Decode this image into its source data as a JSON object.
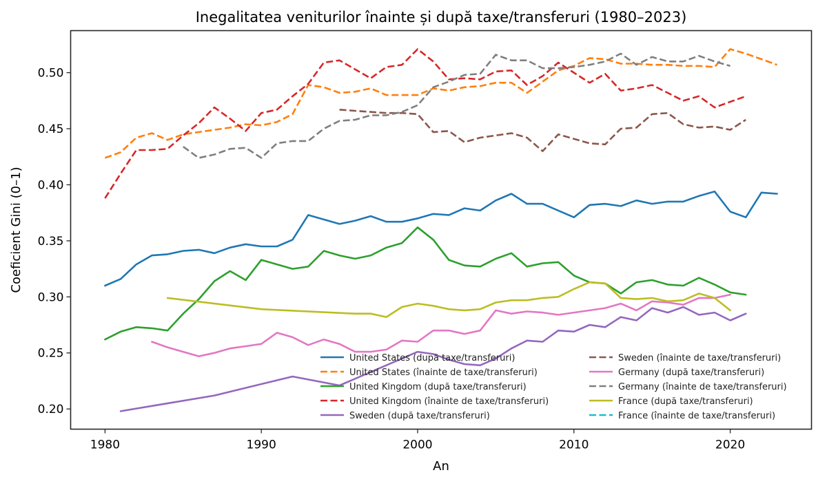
{
  "chart_data": {
    "type": "line",
    "title": "Inegalitatea veniturilor înainte și după taxe/transferuri (1980–2023)",
    "xlabel": "An",
    "ylabel": "Coeficient Gini (0–1)",
    "xlim": [
      1977.8,
      2025.2
    ],
    "ylim": [
      0.182,
      0.5375
    ],
    "xticks": [
      1980,
      1990,
      2000,
      2010,
      2020
    ],
    "xtick_labels": [
      "1980",
      "1990",
      "2000",
      "2010",
      "2020"
    ],
    "yticks": [
      0.2,
      0.25,
      0.3,
      0.35,
      0.4,
      0.45,
      0.5
    ],
    "ytick_labels": [
      "0.20",
      "0.25",
      "0.30",
      "0.35",
      "0.40",
      "0.45",
      "0.50"
    ],
    "grid": false,
    "legend_placement": "lower-right",
    "legend_columns": 2,
    "series": [
      {
        "name": "United States (după taxe/transferuri)",
        "color": "#1f77b4",
        "style": "solid",
        "x": [
          1980,
          1981,
          1982,
          1983,
          1984,
          1985,
          1986,
          1987,
          1988,
          1989,
          1990,
          1991,
          1992,
          1993,
          1994,
          1995,
          1996,
          1997,
          1998,
          1999,
          2000,
          2001,
          2002,
          2003,
          2004,
          2005,
          2006,
          2007,
          2008,
          2009,
          2010,
          2011,
          2012,
          2013,
          2014,
          2015,
          2016,
          2017,
          2018,
          2019,
          2020,
          2021,
          2022,
          2023
        ],
        "y": [
          0.31,
          0.316,
          0.329,
          0.337,
          0.338,
          0.341,
          0.342,
          0.339,
          0.344,
          0.347,
          0.345,
          0.345,
          0.351,
          0.373,
          0.369,
          0.365,
          0.368,
          0.372,
          0.367,
          0.367,
          0.37,
          0.374,
          0.373,
          0.379,
          0.377,
          0.386,
          0.392,
          0.383,
          0.383,
          0.377,
          0.371,
          0.382,
          0.383,
          0.381,
          0.386,
          0.383,
          0.385,
          0.385,
          0.39,
          0.394,
          0.376,
          0.371,
          0.393,
          0.392
        ]
      },
      {
        "name": "United States (înainte de taxe/transferuri)",
        "color": "#ff7f0e",
        "style": "dashed",
        "x": [
          1980,
          1981,
          1982,
          1983,
          1984,
          1985,
          1986,
          1987,
          1988,
          1989,
          1990,
          1991,
          1992,
          1993,
          1994,
          1995,
          1996,
          1997,
          1998,
          1999,
          2000,
          2001,
          2002,
          2003,
          2004,
          2005,
          2006,
          2007,
          2008,
          2009,
          2010,
          2011,
          2012,
          2013,
          2014,
          2015,
          2016,
          2017,
          2018,
          2019,
          2020,
          2021,
          2022,
          2023
        ],
        "y": [
          0.424,
          0.429,
          0.442,
          0.446,
          0.44,
          0.445,
          0.447,
          0.449,
          0.451,
          0.454,
          0.453,
          0.456,
          0.463,
          0.489,
          0.487,
          0.482,
          0.483,
          0.486,
          0.48,
          0.48,
          0.48,
          0.486,
          0.484,
          0.487,
          0.488,
          0.491,
          0.491,
          0.482,
          0.492,
          0.502,
          0.506,
          0.513,
          0.512,
          0.508,
          0.508,
          0.507,
          0.507,
          0.506,
          0.506,
          0.505,
          0.521,
          0.517,
          0.512,
          0.507
        ]
      },
      {
        "name": "United Kingdom (după taxe/transferuri)",
        "color": "#2ca02c",
        "style": "solid",
        "x": [
          1980,
          1981,
          1982,
          1983,
          1984,
          1985,
          1986,
          1987,
          1988,
          1989,
          1990,
          1991,
          1992,
          1993,
          1994,
          1995,
          1996,
          1997,
          1998,
          1999,
          2000,
          2001,
          2002,
          2003,
          2004,
          2005,
          2006,
          2007,
          2008,
          2009,
          2010,
          2011,
          2012,
          2013,
          2014,
          2015,
          2016,
          2017,
          2018,
          2019,
          2020,
          2021
        ],
        "y": [
          0.262,
          0.269,
          0.273,
          0.272,
          0.27,
          0.285,
          0.298,
          0.314,
          0.323,
          0.315,
          0.333,
          0.329,
          0.325,
          0.327,
          0.341,
          0.337,
          0.334,
          0.337,
          0.344,
          0.348,
          0.362,
          0.351,
          0.333,
          0.328,
          0.327,
          0.334,
          0.339,
          0.327,
          0.33,
          0.331,
          0.319,
          0.313,
          0.312,
          0.303,
          0.313,
          0.315,
          0.311,
          0.31,
          0.317,
          0.311,
          0.304,
          0.302
        ]
      },
      {
        "name": "United Kingdom (înainte de taxe/transferuri)",
        "color": "#d62728",
        "style": "dashed",
        "x": [
          1980,
          1981,
          1982,
          1983,
          1984,
          1985,
          1986,
          1987,
          1988,
          1989,
          1990,
          1991,
          1992,
          1993,
          1994,
          1995,
          1996,
          1997,
          1998,
          1999,
          2000,
          2001,
          2002,
          2003,
          2004,
          2005,
          2006,
          2007,
          2008,
          2009,
          2010,
          2011,
          2012,
          2013,
          2014,
          2015,
          2016,
          2017,
          2018,
          2019,
          2020,
          2021
        ],
        "y": [
          0.388,
          0.41,
          0.431,
          0.431,
          0.432,
          0.444,
          0.455,
          0.469,
          0.459,
          0.448,
          0.464,
          0.467,
          0.479,
          0.49,
          0.509,
          0.511,
          0.503,
          0.495,
          0.505,
          0.507,
          0.521,
          0.51,
          0.494,
          0.495,
          0.494,
          0.501,
          0.502,
          0.489,
          0.497,
          0.509,
          0.5,
          0.491,
          0.499,
          0.484,
          0.486,
          0.489,
          0.482,
          0.475,
          0.479,
          0.469,
          0.474,
          0.479
        ]
      },
      {
        "name": "Sweden (după taxe/transferuri)",
        "color": "#9467bd",
        "style": "solid",
        "x": [
          1981,
          1987,
          1992,
          1995,
          2000,
          2001,
          2002,
          2003,
          2004,
          2005,
          2006,
          2007,
          2008,
          2009,
          2010,
          2011,
          2012,
          2013,
          2014,
          2015,
          2016,
          2017,
          2018,
          2019,
          2020,
          2021
        ],
        "y": [
          0.198,
          0.212,
          0.229,
          0.221,
          0.251,
          0.249,
          0.244,
          0.24,
          0.239,
          0.245,
          0.254,
          0.261,
          0.26,
          0.27,
          0.269,
          0.275,
          0.273,
          0.282,
          0.279,
          0.29,
          0.286,
          0.291,
          0.284,
          0.286,
          0.279,
          0.285
        ]
      },
      {
        "name": "Sweden (înainte de taxe/transferuri)",
        "color": "#8c564b",
        "style": "dashed",
        "x": [
          1995,
          1996,
          1997,
          1998,
          1999,
          2000,
          2001,
          2002,
          2003,
          2004,
          2005,
          2006,
          2007,
          2008,
          2009,
          2010,
          2011,
          2012,
          2013,
          2014,
          2015,
          2016,
          2017,
          2018,
          2019,
          2020,
          2021
        ],
        "y": [
          0.467,
          0.466,
          0.465,
          0.464,
          0.464,
          0.463,
          0.447,
          0.448,
          0.438,
          0.442,
          0.444,
          0.446,
          0.442,
          0.43,
          0.445,
          0.441,
          0.437,
          0.436,
          0.45,
          0.451,
          0.463,
          0.464,
          0.454,
          0.451,
          0.452,
          0.449,
          0.458
        ]
      },
      {
        "name": "Germany (după taxe/transferuri)",
        "color": "#e377c2",
        "style": "solid",
        "x": [
          1983,
          1984,
          1986,
          1987,
          1988,
          1989,
          1990,
          1991,
          1992,
          1993,
          1994,
          1995,
          1996,
          1997,
          1998,
          1999,
          2000,
          2001,
          2002,
          2003,
          2004,
          2005,
          2006,
          2007,
          2008,
          2009,
          2010,
          2011,
          2012,
          2013,
          2014,
          2015,
          2016,
          2017,
          2018,
          2019,
          2020
        ],
        "y": [
          0.26,
          0.255,
          0.247,
          0.25,
          0.254,
          0.256,
          0.258,
          0.268,
          0.264,
          0.257,
          0.262,
          0.258,
          0.251,
          0.251,
          0.253,
          0.261,
          0.26,
          0.27,
          0.27,
          0.267,
          0.27,
          0.288,
          0.285,
          0.287,
          0.286,
          0.284,
          0.286,
          0.288,
          0.29,
          0.294,
          0.288,
          0.296,
          0.295,
          0.293,
          0.299,
          0.299,
          0.302
        ]
      },
      {
        "name": "Germany (înainte de taxe/transferuri)",
        "color": "#7f7f7f",
        "style": "dashed",
        "x": [
          1985,
          1986,
          1987,
          1988,
          1989,
          1990,
          1991,
          1992,
          1993,
          1994,
          1995,
          1996,
          1997,
          1998,
          1999,
          2000,
          2001,
          2002,
          2003,
          2004,
          2005,
          2006,
          2007,
          2008,
          2009,
          2010,
          2011,
          2012,
          2013,
          2014,
          2015,
          2016,
          2017,
          2018,
          2019,
          2020
        ],
        "y": [
          0.434,
          0.424,
          0.427,
          0.432,
          0.433,
          0.424,
          0.437,
          0.439,
          0.439,
          0.45,
          0.457,
          0.458,
          0.462,
          0.462,
          0.465,
          0.471,
          0.487,
          0.492,
          0.498,
          0.499,
          0.516,
          0.511,
          0.511,
          0.504,
          0.504,
          0.505,
          0.507,
          0.51,
          0.517,
          0.507,
          0.514,
          0.51,
          0.51,
          0.515,
          0.51,
          0.506
        ]
      },
      {
        "name": "France (după taxe/transferuri)",
        "color": "#bcbd22",
        "style": "solid",
        "x": [
          1984,
          1990,
          1996,
          1997,
          1998,
          1999,
          2000,
          2001,
          2002,
          2003,
          2004,
          2005,
          2006,
          2007,
          2008,
          2009,
          2010,
          2011,
          2012,
          2013,
          2014,
          2015,
          2016,
          2017,
          2018,
          2019,
          2020
        ],
        "y": [
          0.299,
          0.289,
          0.285,
          0.285,
          0.282,
          0.291,
          0.294,
          0.292,
          0.289,
          0.288,
          0.289,
          0.295,
          0.297,
          0.297,
          0.299,
          0.3,
          0.307,
          0.313,
          0.312,
          0.299,
          0.298,
          0.299,
          0.296,
          0.297,
          0.303,
          0.299,
          0.288
        ]
      },
      {
        "name": "France (înainte de taxe/transferuri)",
        "color": "#17becf",
        "style": "dashed",
        "x": [],
        "y": []
      }
    ]
  }
}
